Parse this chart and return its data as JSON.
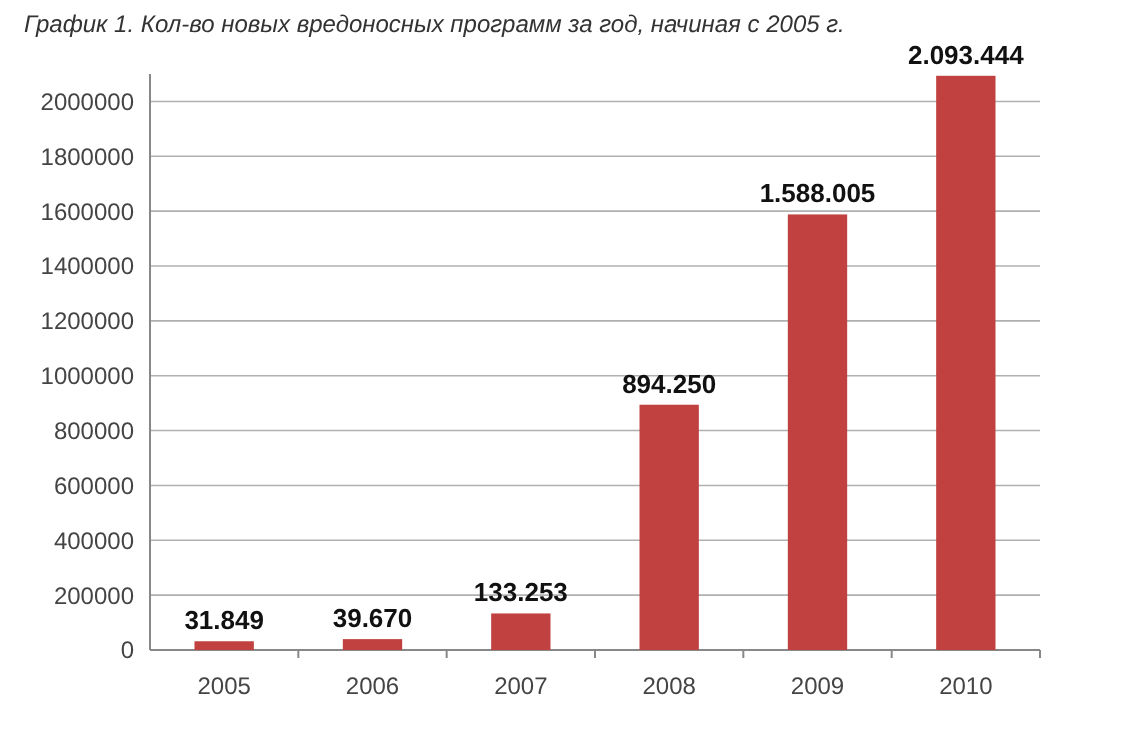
{
  "chart_data": {
    "type": "bar",
    "title": "График 1. Кол-во новых вредоносных программ за год, начиная с 2005 г.",
    "categories": [
      "2005",
      "2006",
      "2007",
      "2008",
      "2009",
      "2010"
    ],
    "values": [
      31849,
      39670,
      133253,
      894250,
      1588005,
      2093444
    ],
    "value_labels": [
      "31.849",
      "39.670",
      "133.253",
      "894.250",
      "1.588.005",
      "2.093.444"
    ],
    "color": "#c0413f",
    "ylim": [
      0,
      2100000
    ],
    "yticks": [
      0,
      200000,
      400000,
      600000,
      800000,
      1000000,
      1200000,
      1400000,
      1600000,
      1800000,
      2000000
    ],
    "grid": "y"
  }
}
